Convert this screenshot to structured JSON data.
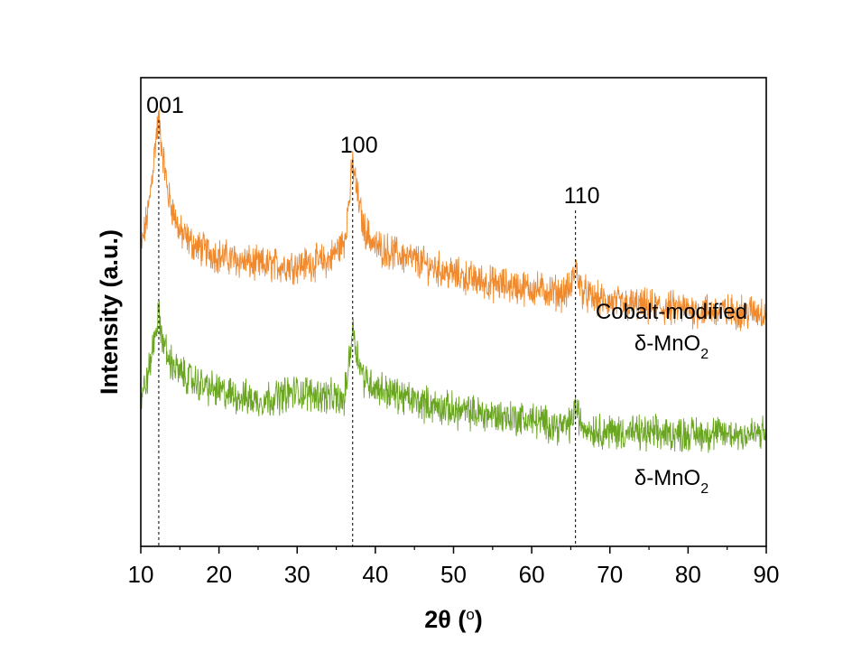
{
  "chart_data": {
    "type": "line",
    "xlabel": "2θ (o)",
    "xlabel_parts": {
      "main": "2θ (",
      "superscript": "o",
      "close": ")"
    },
    "ylabel": "Intensity (a.u.)",
    "xlim": [
      10,
      90
    ],
    "ylim": [
      0,
      100
    ],
    "x_ticks": [
      10,
      20,
      30,
      40,
      50,
      60,
      70,
      80,
      90
    ],
    "x_tick_labels": [
      "10",
      "20",
      "30",
      "40",
      "50",
      "60",
      "70",
      "80",
      "90"
    ],
    "y_ticks_shown": false,
    "grid": false,
    "legend": "none",
    "peaks": [
      {
        "label": "001",
        "x": 12.3
      },
      {
        "label": "100",
        "x": 37.1
      },
      {
        "label": "110",
        "x": 65.6
      }
    ],
    "series": [
      {
        "name": "Cobalt-modified δ-MnO2",
        "name_parts": {
          "line1": "Cobalt-modified",
          "line2_main": "δ-MnO",
          "line2_sub": "2"
        },
        "color": "#f0892c",
        "x": [
          10,
          11,
          11.5,
          12,
          12.3,
          12.7,
          13.5,
          15,
          17,
          20,
          25,
          30,
          34,
          36,
          36.6,
          37.1,
          37.7,
          38.5,
          40,
          45,
          50,
          55,
          60,
          64,
          65,
          65.6,
          66.3,
          67.5,
          70,
          75,
          80,
          85,
          90
        ],
        "y": [
          63,
          72,
          80,
          88,
          91,
          85,
          75,
          67,
          64,
          62,
          60,
          60,
          61,
          65,
          73,
          82,
          75,
          68,
          64,
          61,
          58,
          56,
          55,
          54,
          55,
          60,
          55,
          53,
          52,
          51,
          50.5,
          50,
          50
        ]
      },
      {
        "name": "δ-MnO2",
        "name_parts": {
          "main": "δ-MnO",
          "sub": "2"
        },
        "color": "#6aa520",
        "x": [
          10,
          11,
          11.5,
          12,
          12.3,
          12.7,
          13.5,
          15,
          17,
          20,
          25,
          30,
          34,
          36,
          36.6,
          37.1,
          37.7,
          38.5,
          40,
          45,
          50,
          55,
          60,
          64,
          65,
          65.6,
          66.3,
          67.5,
          70,
          75,
          80,
          85,
          90
        ],
        "y": [
          31,
          37,
          42,
          47,
          49,
          45,
          40,
          37,
          35,
          33,
          31,
          33,
          32,
          31,
          39,
          47,
          41,
          36,
          34,
          31,
          29,
          28,
          27,
          25.5,
          26,
          30,
          26,
          25,
          24.5,
          24,
          24,
          24,
          24
        ]
      }
    ]
  }
}
